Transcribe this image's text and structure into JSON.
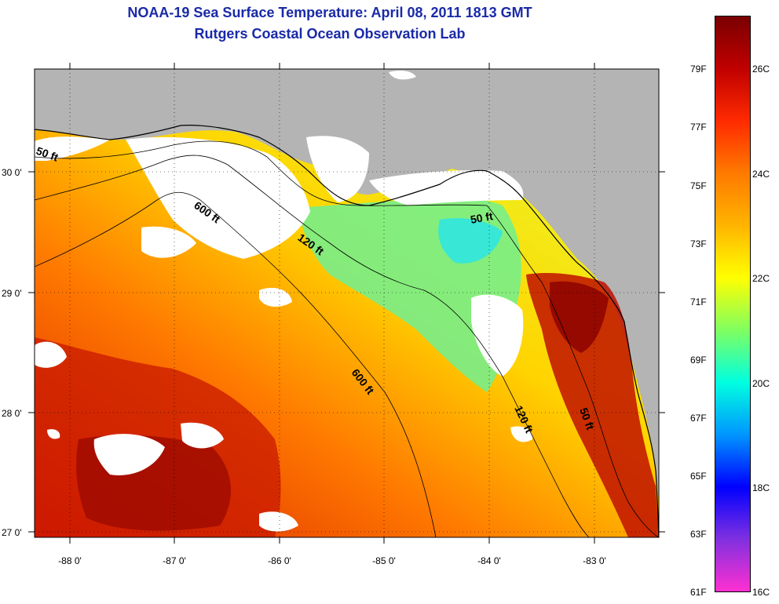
{
  "header": {
    "title": "NOAA-19 Sea Surface Temperature:  April 08, 2011 1813 GMT",
    "subtitle": "Rutgers Coastal Ocean Observation Lab"
  },
  "axes": {
    "lon_labels": [
      "-88 0'",
      "-87 0'",
      "-86 0'",
      "-85 0'",
      "-84 0'",
      "-83 0'"
    ],
    "lat_labels": [
      "30 0'",
      "29 0'",
      "28 0'",
      "27 0'"
    ]
  },
  "contours": {
    "labels": [
      "50 ft",
      "600 ft",
      "120 ft",
      "50 ft",
      "600 ft",
      "120 ft",
      "50 ft"
    ]
  },
  "colorbar": {
    "f_labels": [
      "79F",
      "77F",
      "75F",
      "73F",
      "71F",
      "69F",
      "67F",
      "65F",
      "63F",
      "61F"
    ],
    "c_labels": [
      "26C",
      "24C",
      "22C",
      "20C",
      "18C",
      "16C"
    ],
    "colors": [
      "#7a0000",
      "#c00000",
      "#ff2a00",
      "#ff7a00",
      "#ffb400",
      "#ffff00",
      "#80ff60",
      "#00ffe0",
      "#0096ff",
      "#0000ff",
      "#8030e0",
      "#ff30d0"
    ]
  },
  "map_colors": {
    "land": "#b4b4b4",
    "cloud": "#ffffff"
  }
}
